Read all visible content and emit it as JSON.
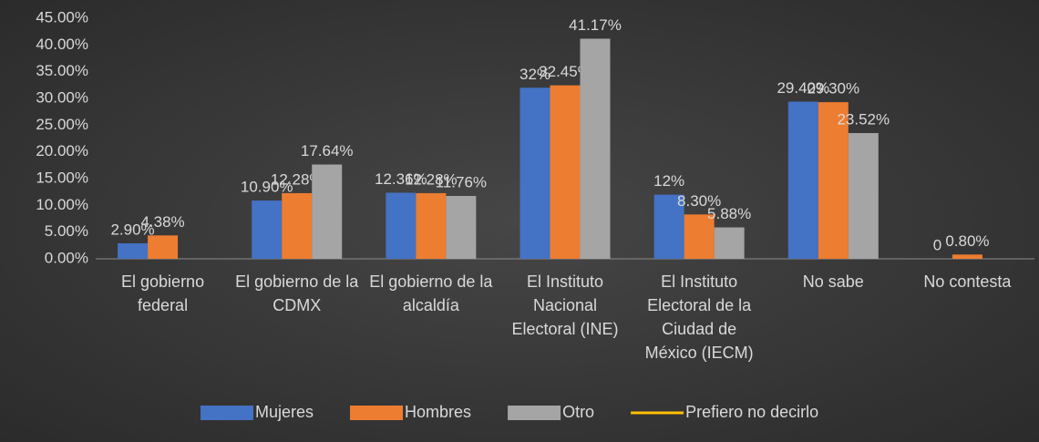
{
  "chart_data": {
    "type": "bar",
    "categories": [
      "El gobierno federal",
      "El gobierno de la CDMX",
      "El gobierno de la alcaldía",
      "El Instituto Nacional Electoral (INE)",
      "El Instituto Electoral de la Ciudad de México (IECM)",
      "No sabe",
      "No contesta"
    ],
    "series": [
      {
        "name": "Mujeres",
        "color": "#4472c4",
        "values": [
          2.9,
          10.9,
          12.36,
          32,
          12,
          29.4,
          0
        ],
        "value_labels": [
          "2.90%",
          "10.90%",
          "12.36%",
          "32%",
          "12%",
          "29.40%",
          "0"
        ]
      },
      {
        "name": "Hombres",
        "color": "#ed7d31",
        "values": [
          4.38,
          12.28,
          12.28,
          32.45,
          8.3,
          29.3,
          0.8
        ],
        "value_labels": [
          "4.38%",
          "12.28%",
          "12.28%",
          "32.45%",
          "8.30%",
          "29.30%",
          "0.80%"
        ]
      },
      {
        "name": "Otro",
        "color": "#a5a5a5",
        "values": [
          null,
          17.64,
          11.76,
          41.17,
          5.88,
          23.52,
          null
        ],
        "value_labels": [
          null,
          "17.64%",
          "11.76%",
          "41.17%",
          "5.88%",
          "23.52%",
          null
        ]
      },
      {
        "name": "Prefiero no decirlo",
        "color": "#ffc000",
        "type": "line",
        "values": [
          null,
          null,
          null,
          null,
          null,
          null,
          null
        ]
      }
    ],
    "ylim": [
      0,
      45
    ],
    "yticks": [
      {
        "value": 0,
        "label": "0.00%"
      },
      {
        "value": 5,
        "label": "5.00%"
      },
      {
        "value": 10,
        "label": "10.00%"
      },
      {
        "value": 15,
        "label": "15.00%"
      },
      {
        "value": 20,
        "label": "20.00%"
      },
      {
        "value": 25,
        "label": "25.00%"
      },
      {
        "value": 30,
        "label": "30.00%"
      },
      {
        "value": 35,
        "label": "35.00%"
      },
      {
        "value": 40,
        "label": "40.00%"
      },
      {
        "value": 45,
        "label": "45.00%"
      }
    ],
    "grid": false,
    "legend": "bottom"
  }
}
